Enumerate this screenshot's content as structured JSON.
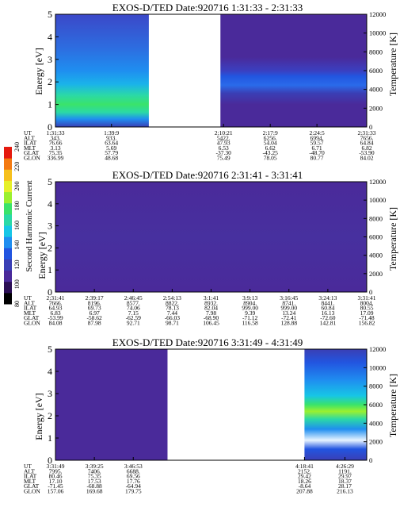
{
  "chart_data": [
    {
      "type": "heatmap",
      "title": "EXOS-D/TED   Date:920716  1:31:33 - 2:31:33",
      "ylabel": "Energy [eV]",
      "y2label": "Temperature [K]",
      "ylim": [
        0,
        5
      ],
      "y2lim": [
        0,
        12000
      ],
      "yticks": [
        "0",
        "1",
        "2",
        "3",
        "4",
        "5"
      ],
      "y2ticks": [
        "0",
        "2000",
        "4000",
        "6000",
        "8000",
        "10000",
        "12000"
      ],
      "data_blocks": [
        {
          "start": 0.0,
          "end": 0.3,
          "profile": "A"
        },
        {
          "start": 0.53,
          "end": 1.0,
          "profile": "B"
        }
      ],
      "table_rows": [
        "UT",
        "ALT",
        "ILAT",
        "MLT",
        "GLAT",
        "GLON"
      ],
      "table_columns": [
        {
          "pos": 0.0,
          "values": [
            "1:31:33",
            "343.",
            "76.66",
            "3.13",
            "75.35",
            "336.99"
          ]
        },
        {
          "pos": 0.18,
          "values": [
            "1:39:9",
            "933.",
            "63.64",
            "5.69",
            "57.79",
            "48.68"
          ]
        },
        {
          "pos": 0.54,
          "values": [
            "2:10:21",
            "5422.",
            "47.93",
            "6.53",
            "-37.30",
            "75.49"
          ]
        },
        {
          "pos": 0.69,
          "values": [
            "2:17:9",
            "6256.",
            "54.04",
            "6.62",
            "-43.25",
            "78.05"
          ]
        },
        {
          "pos": 0.84,
          "values": [
            "2:24:5",
            "6994.",
            "59.57",
            "6.71",
            "-48.70",
            "80.77"
          ]
        },
        {
          "pos": 1.0,
          "values": [
            "2:31:33",
            "7656.",
            "64.84",
            "6.82",
            "-53.90",
            "84.02"
          ]
        }
      ]
    },
    {
      "type": "heatmap",
      "title": "EXOS-D/TED   Date:920716  2:31:41 - 3:31:41",
      "ylabel": "Energy [eV]",
      "y2label": "Temperature [K]",
      "ylim": [
        0,
        5
      ],
      "y2lim": [
        0,
        12000
      ],
      "yticks": [
        "0",
        "1",
        "2",
        "3",
        "4",
        "5"
      ],
      "y2ticks": [
        "0",
        "2000",
        "4000",
        "6000",
        "8000",
        "10000",
        "12000"
      ],
      "data_blocks": [
        {
          "start": 0.0,
          "end": 1.0,
          "profile": "C"
        }
      ],
      "table_rows": [
        "UT",
        "ALT",
        "ILAT",
        "MLT",
        "GLAT",
        "GLON"
      ],
      "table_columns": [
        {
          "pos": 0.0,
          "values": [
            "2:31:41",
            "7666.",
            "64.93",
            "6.83",
            "-53.99",
            "84.08"
          ]
        },
        {
          "pos": 0.125,
          "values": [
            "2:39:17",
            "8196.",
            "69.73",
            "6.97",
            "-58.62",
            "87.98"
          ]
        },
        {
          "pos": 0.25,
          "values": [
            "2:46:45",
            "8577.",
            "74.06",
            "7.15",
            "-62.59",
            "92.71"
          ]
        },
        {
          "pos": 0.375,
          "values": [
            "2:54:13",
            "8822.",
            "78.13",
            "7.44",
            "-66.03",
            "98.71"
          ]
        },
        {
          "pos": 0.5,
          "values": [
            "3:1:41",
            "8932.",
            "82.04",
            "7.98",
            "-68.90",
            "106.45"
          ]
        },
        {
          "pos": 0.625,
          "values": [
            "3:9:13",
            "8904.",
            "999.00",
            "9.39",
            "-71.12",
            "116.58"
          ]
        },
        {
          "pos": 0.75,
          "values": [
            "3:16:45",
            "8741.",
            "999.00",
            "13.24",
            "-72.41",
            "128.88"
          ]
        },
        {
          "pos": 0.875,
          "values": [
            "3:24:13",
            "8441.",
            "60.84",
            "16.13",
            "-72.60",
            "142.81"
          ]
        },
        {
          "pos": 1.0,
          "values": [
            "3:31:41",
            "8004.",
            "80.55",
            "17.09",
            "-71.48",
            "156.82"
          ]
        }
      ]
    },
    {
      "type": "heatmap",
      "title": "EXOS-D/TED   Date:920716  3:31:49 - 4:31:49",
      "ylabel": "Energy [eV]",
      "y2label": "Temperature [K]",
      "ylim": [
        0,
        5
      ],
      "y2lim": [
        0,
        12000
      ],
      "yticks": [
        "0",
        "1",
        "2",
        "3",
        "4",
        "5"
      ],
      "y2ticks": [
        "0",
        "2000",
        "4000",
        "6000",
        "8000",
        "10000",
        "12000"
      ],
      "data_blocks": [
        {
          "start": 0.0,
          "end": 0.36,
          "profile": "D"
        },
        {
          "start": 0.8,
          "end": 1.0,
          "profile": "E"
        }
      ],
      "table_rows": [
        "UT",
        "ALT",
        "ILAT",
        "MLT",
        "GLAT",
        "GLON"
      ],
      "table_columns": [
        {
          "pos": 0.0,
          "values": [
            "3:31:49",
            "7995.",
            "80.46",
            "17.10",
            "-71.45",
            "157.06"
          ]
        },
        {
          "pos": 0.125,
          "values": [
            "3:39:25",
            "7406.",
            "75.35",
            "17.53",
            "-68.88",
            "169.68"
          ]
        },
        {
          "pos": 0.25,
          "values": [
            "3:46:53",
            "6688.",
            "69.56",
            "17.76",
            "-64.94",
            "179.75"
          ]
        },
        {
          "pos": 0.8,
          "values": [
            "4:18:41",
            "2152.",
            "29.42",
            "18.26",
            "-8.64",
            "207.88"
          ]
        },
        {
          "pos": 0.93,
          "values": [
            "4:26:29",
            "1191.",
            "29.97",
            "18.37",
            "28.17",
            "216.13"
          ]
        }
      ]
    }
  ],
  "colorbar": {
    "label": "Second Harmonic Current",
    "ticks": [
      "80",
      "100",
      "120",
      "140",
      "160",
      "180",
      "200",
      "220",
      "240"
    ],
    "colors": [
      "#000000",
      "#2b0f55",
      "#4a2a9a",
      "#3a3fb5",
      "#2255e0",
      "#1f8ef0",
      "#17c6e6",
      "#2bd9a6",
      "#3ae36a",
      "#9bf02f",
      "#e6f02a",
      "#f6c01d",
      "#f47a12",
      "#e51a0f"
    ]
  }
}
